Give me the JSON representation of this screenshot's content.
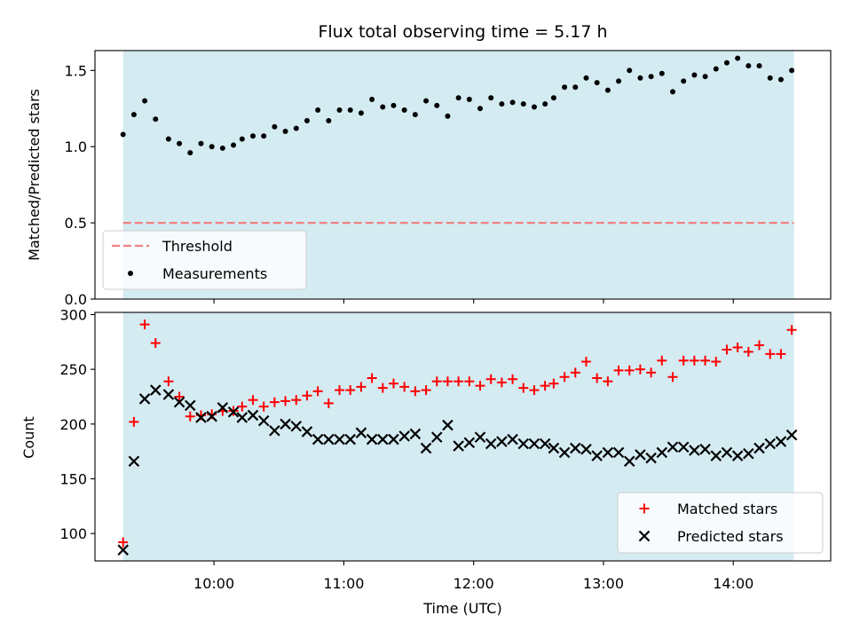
{
  "chart_data": [
    {
      "type": "scatter",
      "title": "Flux total observing time = 5.17 h",
      "xlabel": "",
      "ylabel": "Matched/Predicted stars",
      "ylim": [
        0,
        1.63
      ],
      "yticks": [
        "0.0",
        "0.5",
        "1.0",
        "1.5"
      ],
      "xlim": [
        "09:05",
        "14:45"
      ],
      "shaded_span": [
        "09:18",
        "14:28"
      ],
      "shade_color": "#add8e6",
      "threshold": {
        "name": "Threshold",
        "value": 0.5,
        "color": "#f08080"
      },
      "legend": "lower-left",
      "series": [
        {
          "name": "Measurements",
          "color": "#000000",
          "x": [
            "09:18",
            "09:23",
            "09:28",
            "09:33",
            "09:39",
            "09:44",
            "09:49",
            "09:54",
            "09:59",
            "10:04",
            "10:09",
            "10:13",
            "10:18",
            "10:23",
            "10:28",
            "10:33",
            "10:38",
            "10:43",
            "10:48",
            "10:53",
            "10:58",
            "11:03",
            "11:08",
            "11:13",
            "11:18",
            "11:23",
            "11:28",
            "11:33",
            "11:38",
            "11:43",
            "11:48",
            "11:53",
            "11:58",
            "12:03",
            "12:08",
            "12:13",
            "12:18",
            "12:23",
            "12:28",
            "12:33",
            "12:37",
            "12:42",
            "12:47",
            "12:52",
            "12:57",
            "13:02",
            "13:07",
            "13:12",
            "13:17",
            "13:22",
            "13:27",
            "13:32",
            "13:37",
            "13:42",
            "13:47",
            "13:52",
            "13:57",
            "14:02",
            "14:07",
            "14:12",
            "14:17",
            "14:22",
            "14:27"
          ],
          "y": [
            1.08,
            1.21,
            1.3,
            1.18,
            1.05,
            1.02,
            0.96,
            1.02,
            1.0,
            0.99,
            1.01,
            1.05,
            1.07,
            1.07,
            1.13,
            1.1,
            1.12,
            1.17,
            1.24,
            1.17,
            1.24,
            1.24,
            1.22,
            1.31,
            1.26,
            1.27,
            1.24,
            1.21,
            1.3,
            1.27,
            1.2,
            1.32,
            1.31,
            1.25,
            1.32,
            1.28,
            1.29,
            1.28,
            1.26,
            1.28,
            1.32,
            1.39,
            1.39,
            1.45,
            1.42,
            1.37,
            1.43,
            1.5,
            1.45,
            1.46,
            1.48,
            1.36,
            1.43,
            1.47,
            1.46,
            1.51,
            1.55,
            1.58,
            1.53,
            1.53,
            1.45,
            1.44,
            1.5
          ]
        }
      ]
    },
    {
      "type": "scatter",
      "title": "",
      "xlabel": "Time (UTC)",
      "ylabel": "Count",
      "ylim": [
        75,
        302
      ],
      "yticks": [
        "100",
        "150",
        "200",
        "250",
        "300"
      ],
      "xlim": [
        "09:05",
        "14:45"
      ],
      "xticks": [
        "10:00",
        "11:00",
        "12:00",
        "13:00",
        "14:00"
      ],
      "shaded_span": [
        "09:18",
        "14:28"
      ],
      "shade_color": "#add8e6",
      "legend": "lower-right",
      "series": [
        {
          "name": "Matched stars",
          "marker": "plus",
          "color": "#ff0000",
          "x": [
            "09:18",
            "09:23",
            "09:28",
            "09:33",
            "09:39",
            "09:44",
            "09:49",
            "09:54",
            "09:59",
            "10:04",
            "10:09",
            "10:13",
            "10:18",
            "10:23",
            "10:28",
            "10:33",
            "10:38",
            "10:43",
            "10:48",
            "10:53",
            "10:58",
            "11:03",
            "11:08",
            "11:13",
            "11:18",
            "11:23",
            "11:28",
            "11:33",
            "11:38",
            "11:43",
            "11:48",
            "11:53",
            "11:58",
            "12:03",
            "12:08",
            "12:13",
            "12:18",
            "12:23",
            "12:28",
            "12:33",
            "12:37",
            "12:42",
            "12:47",
            "12:52",
            "12:57",
            "13:02",
            "13:07",
            "13:12",
            "13:17",
            "13:22",
            "13:27",
            "13:32",
            "13:37",
            "13:42",
            "13:47",
            "13:52",
            "13:57",
            "14:02",
            "14:07",
            "14:12",
            "14:17",
            "14:22",
            "14:27"
          ],
          "y": [
            92,
            202,
            291,
            274,
            239,
            225,
            207,
            208,
            209,
            212,
            212,
            216,
            222,
            216,
            220,
            221,
            222,
            226,
            230,
            219,
            231,
            231,
            234,
            242,
            233,
            237,
            234,
            230,
            231,
            239,
            239,
            239,
            239,
            235,
            241,
            238,
            241,
            233,
            231,
            235,
            237,
            243,
            247,
            257,
            242,
            239,
            249,
            249,
            250,
            247,
            258,
            243,
            258,
            258,
            258,
            257,
            268,
            270,
            266,
            272,
            264,
            264,
            286
          ]
        },
        {
          "name": "Predicted stars",
          "marker": "x",
          "color": "#000000",
          "x": [
            "09:18",
            "09:23",
            "09:28",
            "09:33",
            "09:39",
            "09:44",
            "09:49",
            "09:54",
            "09:59",
            "10:04",
            "10:09",
            "10:13",
            "10:18",
            "10:23",
            "10:28",
            "10:33",
            "10:38",
            "10:43",
            "10:48",
            "10:53",
            "10:58",
            "11:03",
            "11:08",
            "11:13",
            "11:18",
            "11:23",
            "11:28",
            "11:33",
            "11:38",
            "11:43",
            "11:48",
            "11:53",
            "11:58",
            "12:03",
            "12:08",
            "12:13",
            "12:18",
            "12:23",
            "12:28",
            "12:33",
            "12:37",
            "12:42",
            "12:47",
            "12:52",
            "12:57",
            "13:02",
            "13:07",
            "13:12",
            "13:17",
            "13:22",
            "13:27",
            "13:32",
            "13:37",
            "13:42",
            "13:47",
            "13:52",
            "13:57",
            "14:02",
            "14:07",
            "14:12",
            "14:17",
            "14:22",
            "14:27"
          ],
          "y": [
            85,
            166,
            223,
            231,
            227,
            220,
            217,
            206,
            207,
            215,
            211,
            206,
            208,
            203,
            194,
            200,
            198,
            193,
            186,
            186,
            186,
            186,
            192,
            186,
            186,
            186,
            189,
            191,
            178,
            188,
            199,
            180,
            183,
            188,
            182,
            184,
            186,
            182,
            182,
            182,
            178,
            174,
            178,
            177,
            171,
            174,
            174,
            166,
            172,
            169,
            174,
            179,
            179,
            176,
            177,
            171,
            174,
            171,
            173,
            178,
            182,
            184,
            190
          ]
        }
      ]
    }
  ]
}
